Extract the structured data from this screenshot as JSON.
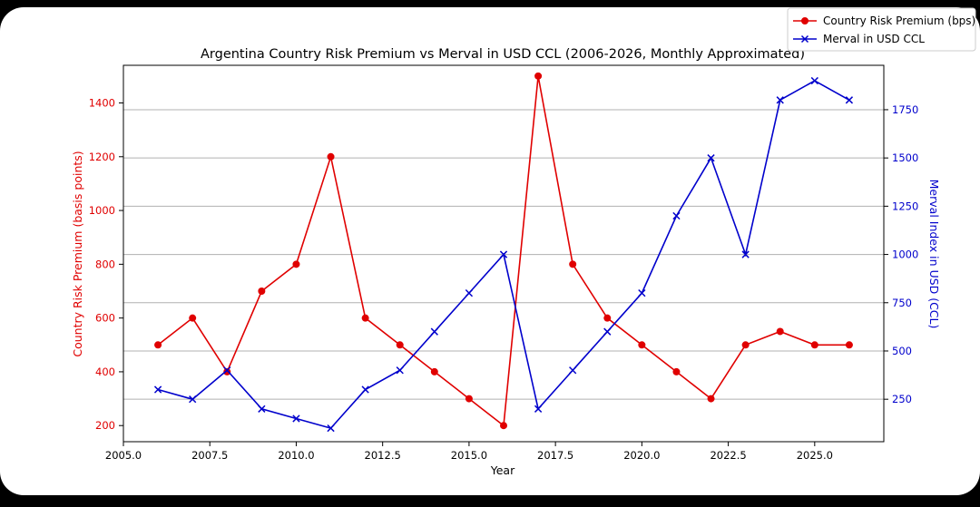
{
  "chart_data": {
    "type": "line",
    "title": "Argentina Country Risk Premium vs Merval in USD CCL (2006-2026, Monthly Approximated)",
    "xlabel": "Year",
    "ylabel_left": "Country Risk Premium (basis points)",
    "ylabel_right": "Merval Index in USD (CCL)",
    "xlim": [
      2005,
      2027
    ],
    "ylim_left": [
      140,
      1540
    ],
    "ylim_right": [
      30,
      1980
    ],
    "x_ticks": [
      "2005.0",
      "2007.5",
      "2010.0",
      "2012.5",
      "2015.0",
      "2017.5",
      "2020.0",
      "2022.5",
      "2025.0"
    ],
    "y_left_ticks": [
      "200",
      "400",
      "600",
      "800",
      "1000",
      "1200",
      "1400"
    ],
    "y_right_ticks": [
      "250",
      "500",
      "750",
      "1000",
      "1250",
      "1500",
      "1750"
    ],
    "grid": "horizontal lines on right axis",
    "legend_placement": "top-right",
    "x": [
      2006,
      2007,
      2008,
      2009,
      2010,
      2011,
      2012,
      2013,
      2014,
      2015,
      2016,
      2017,
      2018,
      2019,
      2020,
      2021,
      2022,
      2023,
      2024,
      2025,
      2026
    ],
    "series": [
      {
        "name": "Country Risk Premium (bps)",
        "axis": "left",
        "color": "#e00000",
        "marker": "circle",
        "values": [
          500,
          600,
          400,
          700,
          800,
          1200,
          600,
          500,
          400,
          300,
          200,
          1500,
          800,
          600,
          500,
          400,
          300,
          500,
          550,
          500,
          500
        ]
      },
      {
        "name": "Merval in USD CCL",
        "axis": "right",
        "color": "#0000cc",
        "marker": "x",
        "values": [
          300,
          250,
          400,
          200,
          150,
          100,
          300,
          400,
          600,
          800,
          1000,
          200,
          400,
          600,
          800,
          1200,
          1500,
          1000,
          1800,
          1900,
          1800
        ]
      }
    ]
  }
}
